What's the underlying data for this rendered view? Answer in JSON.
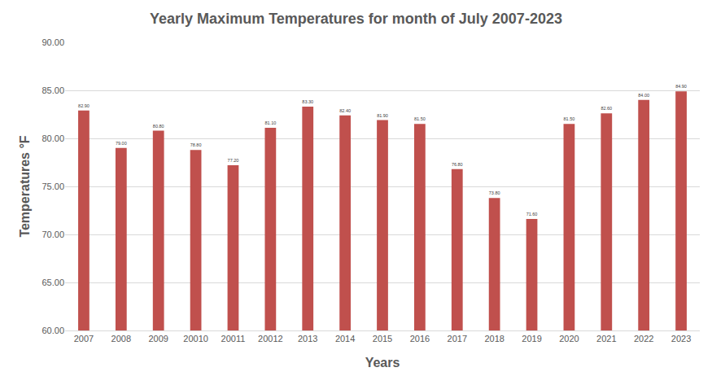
{
  "chart_data": {
    "type": "bar",
    "title": "Yearly Maximum Temperatures for month of July 2007-2023",
    "x_label": "Years",
    "y_label": "Temperatures °F",
    "categories": [
      "2007",
      "2008",
      "2009",
      "20010",
      "20011",
      "20012",
      "2013",
      "2014",
      "2015",
      "2016",
      "2017",
      "2018",
      "2019",
      "2020",
      "2021",
      "2022",
      "2023"
    ],
    "values": [
      82.9,
      79.0,
      80.8,
      78.8,
      77.2,
      81.1,
      83.3,
      82.4,
      81.9,
      81.5,
      76.8,
      73.8,
      71.6,
      81.5,
      82.6,
      84.0,
      84.9
    ],
    "value_labels": [
      "82.90",
      "79.00",
      "80.80",
      "78.80",
      "77.20",
      "81.10",
      "83.30",
      "82.40",
      "81.90",
      "81.50",
      "76.80",
      "73.80",
      "71.60",
      "81.50",
      "82.60",
      "84.00",
      "84.90"
    ],
    "color": "#c0504d",
    "ylim": [
      60,
      90
    ],
    "yticks": [
      {
        "value": 60,
        "label": "60.00"
      },
      {
        "value": 65,
        "label": "65.00"
      },
      {
        "value": 70,
        "label": "70.00"
      },
      {
        "value": 75,
        "label": "75.00"
      },
      {
        "value": 80,
        "label": "80.00"
      },
      {
        "value": 85,
        "label": "85.00"
      },
      {
        "value": 90,
        "label": "90.00"
      }
    ],
    "grid": true,
    "data_labels": true
  }
}
